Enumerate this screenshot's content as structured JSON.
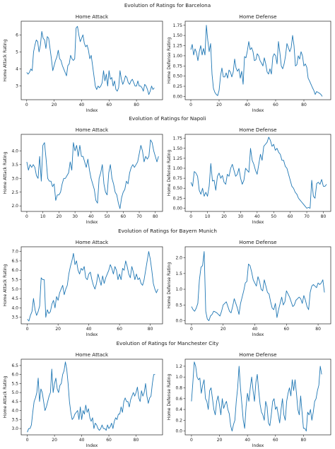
{
  "line_color": "#1f77b4",
  "chart_data": [
    {
      "suptitle": "Evolution of Ratings for Barcelona",
      "panels": [
        {
          "type": "line",
          "title": "Home Attack",
          "xlabel": "Index",
          "ylabel": "Home Attack Rating",
          "xlim": [
            -4,
            99
          ],
          "ylim": [
            2.2,
            6.8
          ],
          "xticks": [
            0,
            20,
            40,
            60,
            80
          ],
          "yticks": [
            3,
            4,
            5,
            6
          ],
          "y": [
            3.8,
            3.7,
            3.8,
            4.0,
            3.9,
            5.0,
            5.4,
            5.7,
            5.6,
            5.0,
            5.4,
            6.2,
            5.8,
            5.7,
            5.2,
            5.9,
            5.8,
            5.2,
            4.6,
            3.9,
            4.2,
            4.5,
            4.7,
            5.1,
            4.6,
            4.5,
            4.2,
            4.0,
            3.8,
            3.6,
            4.2,
            4.3,
            4.8,
            4.6,
            4.5,
            4.6,
            6.4,
            6.5,
            6.0,
            5.6,
            5.8,
            6.0,
            5.5,
            5.3,
            5.4,
            5.1,
            4.6,
            4.8,
            4.2,
            3.6,
            3.0,
            2.8,
            3.0,
            2.9,
            3.0,
            3.2,
            3.9,
            3.3,
            3.7,
            3.0,
            3.9,
            3.4,
            3.5,
            3.0,
            3.3,
            2.8,
            2.7,
            2.9,
            3.9,
            3.4,
            3.1,
            3.3,
            3.6,
            3.5,
            3.2,
            3.1,
            3.3,
            3.4,
            3.2,
            3.0,
            3.0,
            3.3,
            3.0,
            3.0,
            2.9,
            2.7,
            3.1,
            3.0,
            2.8,
            2.5,
            2.7,
            3.0,
            2.8,
            2.9
          ]
        },
        {
          "type": "line",
          "title": "Home Defense",
          "xlabel": "Index",
          "ylabel": "Home Defense Rating",
          "xlim": [
            -4,
            99
          ],
          "ylim": [
            -0.08,
            1.85
          ],
          "xticks": [
            0,
            20,
            40,
            60,
            80
          ],
          "yticks": [
            0.0,
            0.25,
            0.5,
            0.75,
            1.0,
            1.25,
            1.5,
            1.75
          ],
          "y": [
            1.15,
            1.28,
            1.02,
            1.17,
            1.08,
            0.88,
            1.1,
            1.25,
            1.02,
            1.18,
            1.02,
            1.75,
            1.38,
            1.1,
            1.3,
            0.55,
            0.2,
            0.1,
            0.05,
            0.02,
            0.15,
            0.5,
            0.7,
            0.48,
            0.48,
            0.58,
            0.45,
            0.65,
            0.6,
            0.48,
            0.6,
            0.92,
            0.7,
            0.62,
            0.68,
            0.45,
            0.62,
            0.3,
            0.98,
            0.95,
            1.12,
            1.35,
            1.15,
            1.2,
            1.1,
            0.88,
            0.9,
            1.05,
            1.0,
            0.88,
            0.82,
            0.75,
            0.95,
            0.8,
            0.6,
            0.55,
            0.68,
            0.55,
            0.97,
            1.05,
            1.0,
            0.8,
            1.35,
            1.08,
            0.75,
            0.68,
            0.8,
            1.0,
            1.3,
            1.2,
            1.1,
            1.2,
            1.5,
            1.25,
            0.75,
            0.78,
            1.0,
            0.92,
            1.1,
            1.0,
            0.75,
            0.8,
            0.72,
            0.45,
            0.38,
            0.3,
            0.22,
            0.15,
            0.05,
            0.12,
            0.1,
            0.08,
            0.05,
            0.0
          ]
        }
      ]
    },
    {
      "suptitle": "Evolution of Ratings for Napoli",
      "panels": [
        {
          "type": "line",
          "title": "Home Attack",
          "xlabel": "Index",
          "ylabel": "Home Attack Rating",
          "xlim": [
            -3.5,
            84.5
          ],
          "ylim": [
            1.8,
            4.6
          ],
          "xticks": [
            0,
            10,
            20,
            30,
            40,
            50,
            60,
            70,
            80
          ],
          "yticks": [
            2.0,
            2.5,
            3.0,
            3.5,
            4.0
          ],
          "y": [
            3.6,
            3.3,
            3.5,
            3.4,
            3.5,
            3.4,
            3.1,
            3.0,
            3.8,
            2.9,
            4.2,
            4.3,
            3.7,
            3.0,
            2.9,
            2.9,
            2.7,
            2.8,
            2.2,
            2.4,
            2.4,
            2.5,
            2.8,
            3.0,
            3.0,
            3.1,
            3.2,
            3.6,
            3.3,
            4.3,
            4.0,
            4.2,
            3.8,
            4.2,
            3.8,
            3.8,
            3.6,
            3.4,
            3.7,
            3.3,
            3.0,
            2.8,
            2.6,
            2.2,
            2.1,
            3.0,
            3.2,
            3.5,
            2.8,
            2.5,
            2.4,
            3.2,
            3.5,
            3.0,
            2.8,
            2.5,
            2.4,
            2.1,
            1.9,
            2.3,
            2.5,
            2.6,
            2.9,
            2.8,
            3.2,
            3.4,
            3.5,
            3.4,
            3.5,
            3.6,
            3.9,
            4.2,
            4.0,
            3.6,
            3.8,
            3.7,
            3.8,
            4.4,
            4.3,
            4.0,
            3.8,
            3.6,
            3.8
          ]
        },
        {
          "type": "line",
          "title": "Home Defense",
          "xlabel": "Index",
          "ylabel": "Home Defense Rating",
          "xlim": [
            -3.5,
            84.5
          ],
          "ylim": [
            -0.08,
            1.85
          ],
          "xticks": [
            0,
            10,
            20,
            30,
            40,
            50,
            60,
            70,
            80
          ],
          "yticks": [
            0.0,
            0.25,
            0.5,
            0.75,
            1.0,
            1.25,
            1.5,
            1.75
          ],
          "y": [
            0.65,
            0.55,
            0.92,
            0.88,
            0.8,
            0.45,
            0.35,
            0.5,
            0.3,
            0.4,
            0.3,
            0.55,
            1.12,
            0.68,
            0.7,
            0.45,
            0.8,
            0.88,
            0.75,
            0.82,
            0.65,
            0.6,
            0.85,
            0.8,
            1.0,
            1.1,
            0.95,
            0.8,
            0.85,
            1.0,
            0.75,
            0.6,
            0.7,
            1.0,
            0.95,
            0.9,
            1.5,
            1.2,
            1.1,
            0.95,
            0.85,
            1.1,
            1.35,
            1.2,
            1.55,
            1.6,
            1.65,
            1.78,
            1.7,
            1.55,
            1.6,
            1.45,
            1.5,
            1.4,
            1.35,
            1.2,
            1.2,
            1.05,
            1.0,
            0.85,
            0.7,
            0.55,
            0.5,
            0.4,
            0.35,
            0.25,
            0.2,
            0.15,
            0.1,
            0.05,
            0.0,
            0.02,
            0.0,
            0.7,
            0.3,
            0.25,
            0.62,
            0.65,
            0.6,
            0.72,
            0.55,
            0.55,
            0.6
          ]
        }
      ]
    },
    {
      "suptitle": "Evolution of Ratings for Bayern Munich",
      "panels": [
        {
          "type": "line",
          "title": "Home Attack",
          "xlabel": "Index",
          "ylabel": "Home Attack Rating",
          "xlim": [
            -4,
            88
          ],
          "ylim": [
            3.15,
            7.25
          ],
          "xticks": [
            0,
            20,
            40,
            60,
            80
          ],
          "yticks": [
            3.5,
            4.0,
            4.5,
            5.0,
            5.5,
            6.0,
            6.5,
            7.0
          ],
          "y": [
            3.4,
            3.3,
            3.6,
            3.8,
            4.5,
            3.9,
            3.6,
            3.8,
            4.1,
            5.6,
            5.5,
            5.5,
            3.5,
            3.9,
            3.7,
            3.8,
            4.2,
            4.4,
            4.0,
            4.6,
            4.4,
            4.8,
            5.0,
            5.2,
            4.7,
            5.0,
            5.2,
            5.8,
            6.2,
            6.5,
            6.9,
            6.3,
            6.5,
            6.0,
            5.8,
            6.1,
            6.0,
            6.2,
            5.6,
            5.5,
            5.8,
            5.9,
            5.5,
            5.2,
            5.0,
            5.3,
            5.8,
            5.5,
            5.2,
            5.7,
            5.3,
            5.6,
            5.8,
            6.0,
            6.3,
            6.1,
            5.8,
            6.2,
            6.0,
            5.5,
            5.8,
            5.5,
            6.1,
            6.0,
            6.5,
            6.2,
            5.8,
            5.6,
            6.2,
            5.9,
            5.5,
            5.8,
            5.5,
            5.6,
            5.3,
            5.2,
            5.5,
            6.0,
            6.5,
            7.0,
            6.6,
            6.0,
            5.3,
            5.0,
            4.8,
            5.0
          ]
        },
        {
          "type": "line",
          "title": "Home Defense",
          "xlabel": "Index",
          "ylabel": "Home Defense Rating",
          "xlim": [
            -4,
            88
          ],
          "ylim": [
            -0.1,
            2.35
          ],
          "xticks": [
            0,
            20,
            40,
            60,
            80
          ],
          "yticks": [
            0.0,
            0.5,
            1.0,
            1.5,
            2.0
          ],
          "y": [
            0.45,
            0.35,
            0.3,
            0.4,
            0.55,
            1.3,
            1.7,
            1.75,
            2.2,
            0.3,
            0.05,
            0.0,
            0.15,
            0.2,
            0.3,
            0.28,
            0.25,
            0.2,
            0.15,
            0.3,
            0.5,
            0.55,
            0.6,
            0.45,
            0.3,
            0.25,
            0.45,
            0.7,
            0.55,
            0.4,
            0.2,
            0.55,
            0.75,
            0.95,
            1.2,
            1.25,
            1.8,
            1.75,
            1.55,
            1.3,
            1.2,
            1.1,
            1.4,
            1.25,
            1.0,
            0.95,
            1.3,
            1.1,
            0.9,
            0.85,
            0.6,
            0.4,
            0.35,
            0.55,
            0.1,
            0.35,
            0.55,
            0.75,
            0.5,
            0.6,
            0.95,
            0.85,
            0.75,
            0.6,
            0.45,
            0.5,
            0.65,
            0.7,
            0.75,
            0.7,
            0.55,
            0.8,
            0.65,
            0.45,
            0.35,
            0.9,
            1.1,
            1.15,
            1.1,
            1.05,
            1.2,
            1.15,
            1.2,
            1.3,
            0.9
          ]
        }
      ]
    },
    {
      "suptitle": "Evolution of Ratings for Manchester City",
      "panels": [
        {
          "type": "line",
          "title": "Home Attack",
          "xlabel": "Index",
          "ylabel": "Home Attack Rating",
          "xlim": [
            -4.5,
            99.5
          ],
          "ylim": [
            2.65,
            6.85
          ],
          "xticks": [
            0,
            20,
            40,
            60,
            80
          ],
          "yticks": [
            3.0,
            3.5,
            4.0,
            4.5,
            5.0,
            5.5,
            6.0,
            6.5
          ],
          "y": [
            2.8,
            3.0,
            3.0,
            3.2,
            3.9,
            4.5,
            4.7,
            5.0,
            5.8,
            4.5,
            5.2,
            5.0,
            4.5,
            4.0,
            4.2,
            4.5,
            4.8,
            5.0,
            6.3,
            5.0,
            5.5,
            5.8,
            5.2,
            5.0,
            5.4,
            5.5,
            6.0,
            6.2,
            6.7,
            6.3,
            5.5,
            4.5,
            3.9,
            3.5,
            3.6,
            3.8,
            3.9,
            4.0,
            3.5,
            4.2,
            3.5,
            4.0,
            3.8,
            4.3,
            3.9,
            4.1,
            3.6,
            3.4,
            3.6,
            3.0,
            3.3,
            3.2,
            3.0,
            2.9,
            3.0,
            3.2,
            3.0,
            3.0,
            2.9,
            3.2,
            3.0,
            3.1,
            3.3,
            3.0,
            3.4,
            3.6,
            3.5,
            3.8,
            3.8,
            4.2,
            3.9,
            4.5,
            4.7,
            4.5,
            4.5,
            4.2,
            4.6,
            4.8,
            5.0,
            4.8,
            5.0,
            5.3,
            4.7,
            4.5,
            5.1,
            4.8,
            5.0,
            5.5,
            4.8,
            4.4,
            4.7,
            4.8,
            5.5,
            6.0,
            6.0
          ]
        },
        {
          "type": "line",
          "title": "Home Defense",
          "xlabel": "Index",
          "ylabel": "Home Defense Rating",
          "xlim": [
            -4.5,
            99.5
          ],
          "ylim": [
            -0.07,
            1.33
          ],
          "xticks": [
            0,
            20,
            40,
            60,
            80
          ],
          "yticks": [
            0.0,
            0.2,
            0.4,
            0.6,
            0.8,
            1.0,
            1.2
          ],
          "y": [
            0.55,
            0.9,
            1.28,
            1.2,
            1.0,
            0.95,
            0.98,
            0.7,
            0.85,
            0.95,
            0.6,
            0.55,
            0.4,
            0.75,
            0.8,
            0.6,
            0.4,
            0.3,
            0.55,
            0.65,
            0.48,
            0.3,
            0.6,
            0.42,
            0.5,
            0.55,
            0.4,
            0.32,
            0.1,
            0.0,
            0.12,
            0.2,
            0.55,
            0.8,
            1.2,
            0.8,
            0.5,
            0.2,
            0.05,
            0.45,
            0.7,
            0.55,
            0.8,
            1.0,
            0.75,
            0.55,
            0.9,
            1.05,
            0.75,
            0.5,
            0.35,
            0.3,
            0.2,
            0.55,
            0.45,
            0.15,
            0.1,
            0.3,
            0.55,
            0.6,
            0.4,
            0.45,
            0.3,
            0.15,
            0.4,
            0.6,
            0.3,
            0.2,
            0.55,
            0.7,
            0.8,
            0.65,
            0.95,
            0.75,
            0.95,
            0.7,
            0.4,
            0.3,
            0.65,
            0.35,
            0.05,
            0.05,
            0.0,
            0.35,
            0.3,
            0.4,
            0.2,
            0.35,
            0.55,
            0.6,
            0.75,
            0.85,
            1.2,
            1.05
          ]
        }
      ]
    }
  ]
}
